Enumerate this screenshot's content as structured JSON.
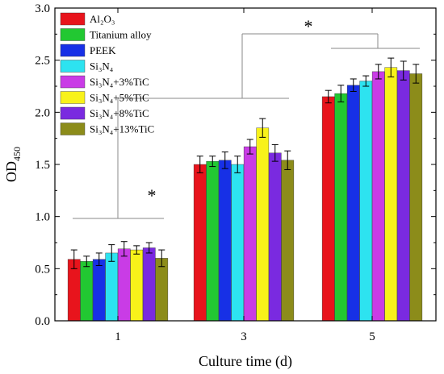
{
  "chart_data": {
    "type": "bar",
    "xlabel": "Culture time (d)",
    "ylabel": "OD",
    "ylabel_sub": "450",
    "ylim": [
      0,
      3.0
    ],
    "yticks": [
      "0.0",
      "0.5",
      "1.0",
      "1.5",
      "2.0",
      "2.5",
      "3.0"
    ],
    "categories": [
      "1",
      "3",
      "5"
    ],
    "significance": [
      "*",
      "*"
    ],
    "series": [
      {
        "name": "Al₂O₃",
        "color": "#e8141c",
        "values": [
          0.59,
          1.5,
          2.15
        ],
        "errors": [
          0.09,
          0.08,
          0.06
        ]
      },
      {
        "name": "Titanium alloy",
        "color": "#22c832",
        "values": [
          0.57,
          1.53,
          2.18
        ],
        "errors": [
          0.05,
          0.05,
          0.08
        ]
      },
      {
        "name": "PEEK",
        "color": "#1730e6",
        "values": [
          0.59,
          1.54,
          2.26
        ],
        "errors": [
          0.06,
          0.08,
          0.06
        ]
      },
      {
        "name": "Si₃N₄",
        "color": "#2de3f0",
        "values": [
          0.65,
          1.5,
          2.3
        ],
        "errors": [
          0.08,
          0.08,
          0.05
        ]
      },
      {
        "name": "Si₃N₄+3%TiC",
        "color": "#c93ce6",
        "values": [
          0.69,
          1.67,
          2.39
        ],
        "errors": [
          0.07,
          0.07,
          0.07
        ]
      },
      {
        "name": "Si₃N₄+5%TiC",
        "color": "#f8f21a",
        "values": [
          0.68,
          1.85,
          2.43
        ],
        "errors": [
          0.04,
          0.09,
          0.09
        ]
      },
      {
        "name": "Si₃N₄+8%TiC",
        "color": "#7a2ae0",
        "values": [
          0.7,
          1.61,
          2.4
        ],
        "errors": [
          0.05,
          0.08,
          0.09
        ]
      },
      {
        "name": "Si₃N₄+13%TiC",
        "color": "#8c8c1a",
        "values": [
          0.6,
          1.54,
          2.37
        ],
        "errors": [
          0.08,
          0.09,
          0.09
        ]
      }
    ]
  }
}
